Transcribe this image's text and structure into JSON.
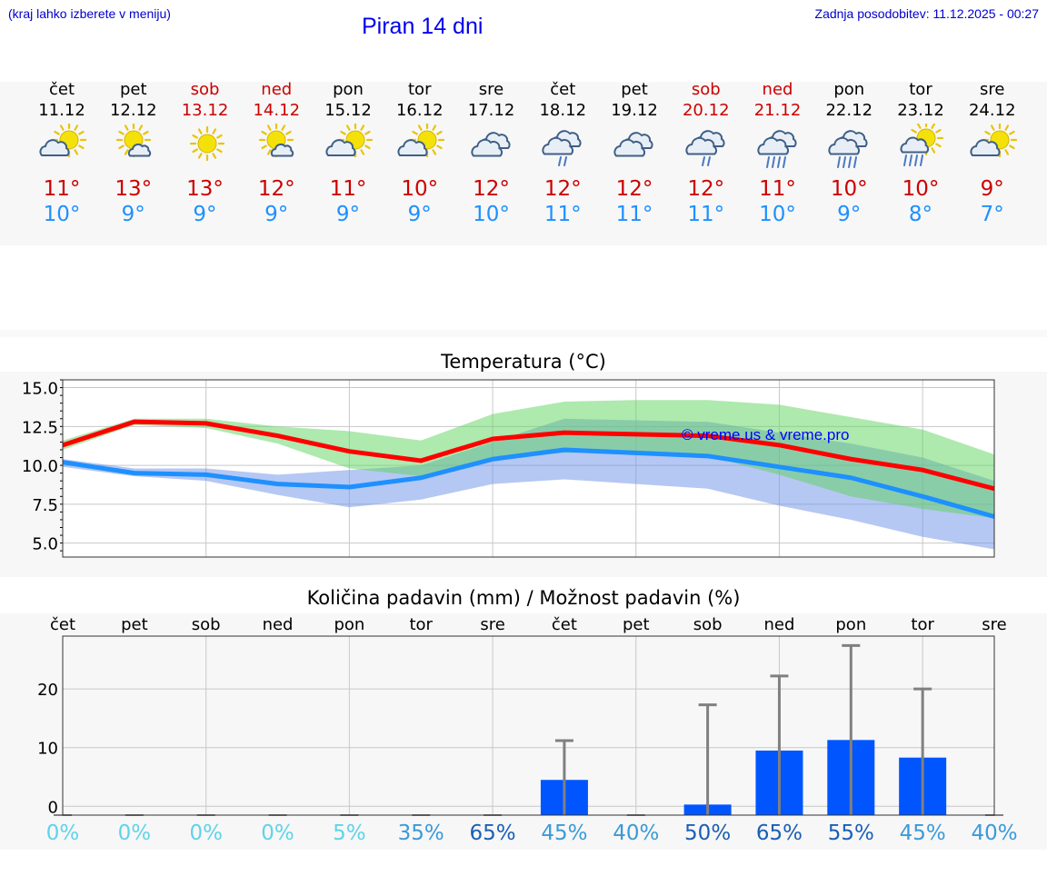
{
  "header": {
    "hint": "(kraj lahko izberete v meniju)",
    "title": "Piran 14 dni",
    "updated": "Zadnja posodobitev: 11.12.2025 - 00:27"
  },
  "days": [
    {
      "name": "čet",
      "date": "11.12",
      "weekend": false,
      "icon": "sun-cloud-icon",
      "tmax": "11°",
      "tmin": "10°"
    },
    {
      "name": "pet",
      "date": "12.12",
      "weekend": false,
      "icon": "sun-small-cloud-icon",
      "tmax": "13°",
      "tmin": "9°"
    },
    {
      "name": "sob",
      "date": "13.12",
      "weekend": true,
      "icon": "sun-icon",
      "tmax": "13°",
      "tmin": "9°"
    },
    {
      "name": "ned",
      "date": "14.12",
      "weekend": true,
      "icon": "sun-small-cloud-icon",
      "tmax": "12°",
      "tmin": "9°"
    },
    {
      "name": "pon",
      "date": "15.12",
      "weekend": false,
      "icon": "sun-cloud-icon",
      "tmax": "11°",
      "tmin": "9°"
    },
    {
      "name": "tor",
      "date": "16.12",
      "weekend": false,
      "icon": "sun-cloud-icon",
      "tmax": "10°",
      "tmin": "9°"
    },
    {
      "name": "sre",
      "date": "17.12",
      "weekend": false,
      "icon": "overcast-icon",
      "tmax": "12°",
      "tmin": "10°"
    },
    {
      "name": "čet",
      "date": "18.12",
      "weekend": false,
      "icon": "cloud-light-rain-icon",
      "tmax": "12°",
      "tmin": "11°"
    },
    {
      "name": "pet",
      "date": "19.12",
      "weekend": false,
      "icon": "overcast-icon",
      "tmax": "12°",
      "tmin": "11°"
    },
    {
      "name": "sob",
      "date": "20.12",
      "weekend": true,
      "icon": "cloud-light-rain-icon",
      "tmax": "12°",
      "tmin": "11°"
    },
    {
      "name": "ned",
      "date": "21.12",
      "weekend": true,
      "icon": "cloud-heavy-rain-icon",
      "tmax": "11°",
      "tmin": "10°"
    },
    {
      "name": "pon",
      "date": "22.12",
      "weekend": false,
      "icon": "cloud-heavy-rain-icon",
      "tmax": "10°",
      "tmin": "9°"
    },
    {
      "name": "tor",
      "date": "23.12",
      "weekend": false,
      "icon": "sun-rain-icon",
      "tmax": "10°",
      "tmin": "8°"
    },
    {
      "name": "sre",
      "date": "24.12",
      "weekend": false,
      "icon": "sun-cloud-icon",
      "tmax": "9°",
      "tmin": "7°"
    }
  ],
  "chart_data": [
    {
      "type": "line",
      "title": "Temperatura (°C)",
      "watermark": "© vreme.us & vreme.pro",
      "x": [
        0,
        1,
        2,
        3,
        4,
        5,
        6,
        7,
        8,
        9,
        10,
        11,
        12,
        13
      ],
      "ylim": [
        4.1,
        15.5
      ],
      "yticks": [
        "15.0",
        "12.5",
        "10.0",
        "7.5",
        "5.0"
      ],
      "ytick_values": [
        15.0,
        12.5,
        10.0,
        7.5,
        5.0
      ],
      "series": [
        {
          "name": "max",
          "values": [
            11.3,
            12.8,
            12.7,
            11.9,
            10.9,
            10.3,
            11.7,
            12.1,
            12.0,
            11.9,
            11.3,
            10.4,
            9.7,
            8.5
          ]
        },
        {
          "name": "min",
          "values": [
            10.2,
            9.5,
            9.4,
            8.8,
            8.6,
            9.2,
            10.4,
            11.0,
            10.8,
            10.6,
            9.9,
            9.2,
            8.0,
            6.7
          ]
        }
      ],
      "bands": [
        {
          "name": "max-range",
          "low": [
            11.0,
            12.6,
            12.4,
            11.4,
            9.8,
            9.3,
            10.4,
            10.8,
            10.8,
            10.6,
            9.4,
            8.0,
            7.2,
            6.6
          ],
          "high": [
            11.6,
            13.0,
            13.0,
            12.5,
            12.2,
            11.6,
            13.3,
            14.1,
            14.2,
            14.2,
            13.9,
            13.1,
            12.3,
            10.7
          ]
        },
        {
          "name": "min-range",
          "low": [
            9.9,
            9.3,
            9.0,
            8.1,
            7.3,
            7.8,
            8.8,
            9.1,
            8.8,
            8.5,
            7.4,
            6.5,
            5.4,
            4.6
          ],
          "high": [
            10.4,
            9.8,
            9.8,
            9.4,
            9.7,
            10.0,
            11.5,
            13.0,
            12.9,
            12.8,
            12.1,
            11.4,
            10.5,
            9.0
          ]
        }
      ]
    },
    {
      "type": "bar",
      "title": "Količina padavin (mm) / Možnost padavin (%)",
      "categories": [
        "čet",
        "pet",
        "sob",
        "ned",
        "pon",
        "tor",
        "sre",
        "čet",
        "pet",
        "sob",
        "ned",
        "pon",
        "tor",
        "sre"
      ],
      "ylim": [
        -1.5,
        29
      ],
      "yticks": [
        "20",
        "10",
        "0"
      ],
      "ytick_values": [
        20,
        10,
        0
      ],
      "values": [
        0,
        0,
        0,
        0,
        0,
        0,
        0,
        4.5,
        0,
        0.3,
        9.5,
        11.3,
        8.3,
        0
      ],
      "errors_high": [
        0,
        0,
        0,
        0,
        0,
        0,
        0,
        11.2,
        0,
        17.3,
        22.2,
        27.4,
        20.0,
        0
      ],
      "chance": [
        "0%",
        "0%",
        "0%",
        "0%",
        "5%",
        "35%",
        "65%",
        "45%",
        "40%",
        "50%",
        "65%",
        "55%",
        "45%",
        "40%"
      ],
      "chance_colors": [
        "#5fd3ea",
        "#5fd3ea",
        "#5fd3ea",
        "#5fd3ea",
        "#5fd3ea",
        "#3a9ad9",
        "#1a5fb4",
        "#3a9ad9",
        "#3a9ad9",
        "#1a5fb4",
        "#1a5fb4",
        "#1a5fb4",
        "#3a9ad9",
        "#3a9ad9"
      ]
    }
  ],
  "colors": {
    "max_line": "#ff0000",
    "min_line": "#1e90ff",
    "max_band": "#5dd35d",
    "min_band": "#6b8fe8",
    "bar": "#0055ff",
    "error": "#808080",
    "weekend": "#cc0000",
    "watermark": "#0000ff"
  }
}
